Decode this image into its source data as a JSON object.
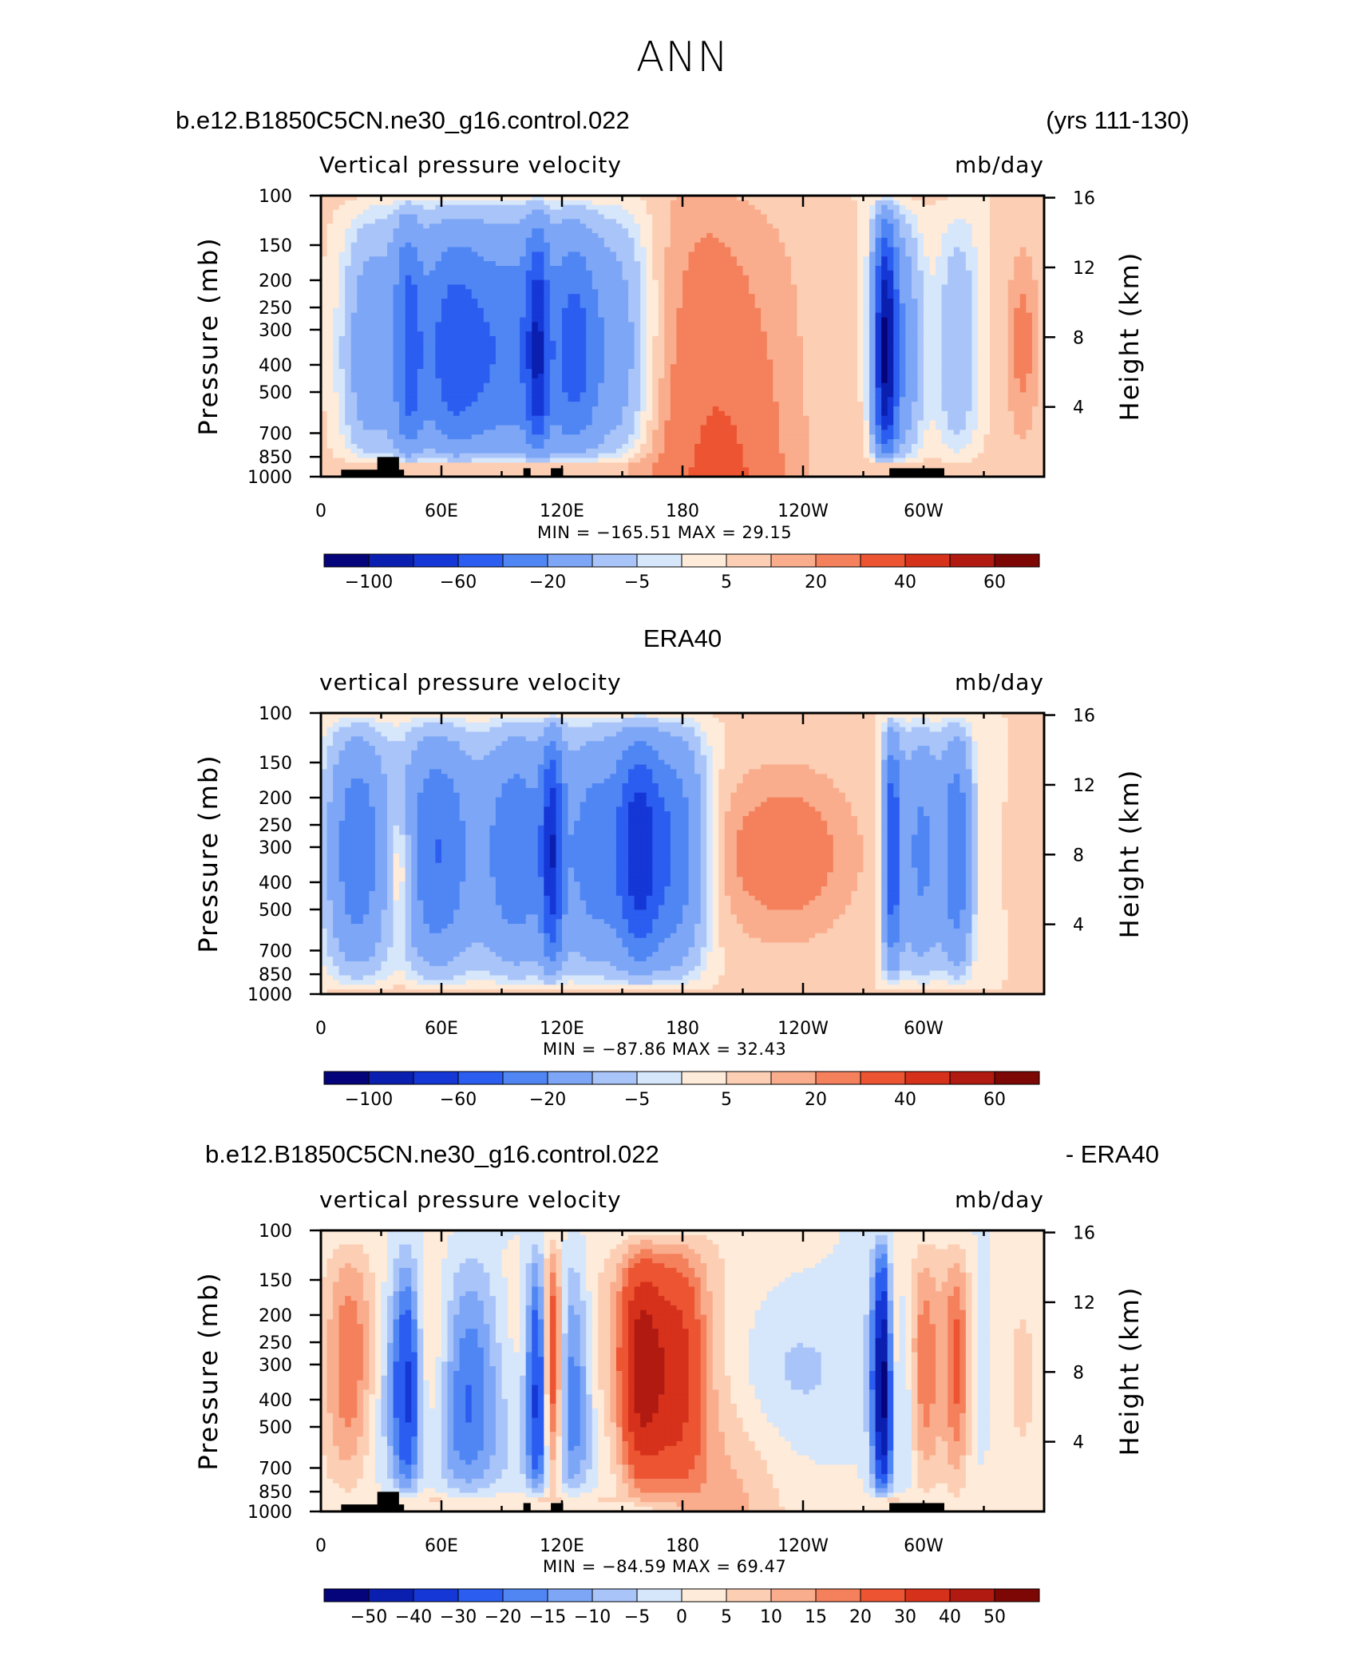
{
  "title": "ANN",
  "panels": [
    {
      "left_string": "b.e12.B1850C5CN.ne30_g16.control.022",
      "center_string": "",
      "right_string": "(yrs 111-130)",
      "variable": "Vertical pressure velocity",
      "units": "mb/day",
      "minmax": "MIN =  −165.51   MAX =   29.15",
      "has_topo": true
    },
    {
      "left_string": "",
      "center_string": "ERA40",
      "right_string": "",
      "variable": "vertical pressure velocity",
      "units": "mb/day",
      "minmax": "MIN =  −87.86   MAX =   32.43",
      "has_topo": false
    },
    {
      "left_string": "b.e12.B1850C5CN.ne30_g16.control.022",
      "center_string": "",
      "right_string": "- ERA40",
      "variable": "vertical pressure velocity",
      "units": "mb/day",
      "minmax": "MIN =  −84.59   MAX =   69.47",
      "has_topo": true
    }
  ],
  "colors": {
    "cmap": [
      "#06047a",
      "#0a1fb0",
      "#1437d6",
      "#2a5df0",
      "#4f86f4",
      "#7da6f6",
      "#a9c4f8",
      "#d6e6fb",
      "#feebd9",
      "#fcceb4",
      "#f9ad8d",
      "#f4805c",
      "#ec5432",
      "#d6311a",
      "#b01a10",
      "#7c0705"
    ],
    "topo": "#000000"
  },
  "chart_data": [
    {
      "type": "heatmap",
      "title": "b.e12.B1850C5CN.ne30_g16.control.022",
      "subtitle": "Vertical pressure velocity",
      "xlabel": "",
      "ylabel": "Pressure (mb)",
      "y2label": "Height (km)",
      "x_ticks": [
        "0",
        "60E",
        "120E",
        "180",
        "120W",
        "60W"
      ],
      "y_ticks": [
        "100",
        "150",
        "200",
        "250",
        "300",
        "400",
        "500",
        "700",
        "850",
        "1000"
      ],
      "y2_ticks": [
        "16",
        "12",
        "8",
        "4"
      ],
      "ylim": [
        1000,
        100
      ],
      "xlim": [
        0,
        360
      ],
      "colorbar_labels": [
        "−100",
        "−60",
        "−20",
        "−5",
        "5",
        "20",
        "40",
        "60"
      ],
      "min": -165.51,
      "max": 29.15,
      "units": "mb/day"
    },
    {
      "type": "heatmap",
      "title": "ERA40",
      "subtitle": "vertical pressure velocity",
      "xlabel": "",
      "ylabel": "Pressure (mb)",
      "y2label": "Height (km)",
      "x_ticks": [
        "0",
        "60E",
        "120E",
        "180",
        "120W",
        "60W"
      ],
      "y_ticks": [
        "100",
        "150",
        "200",
        "250",
        "300",
        "400",
        "500",
        "700",
        "850",
        "1000"
      ],
      "y2_ticks": [
        "16",
        "12",
        "8",
        "4"
      ],
      "ylim": [
        1000,
        100
      ],
      "xlim": [
        0,
        360
      ],
      "colorbar_labels": [
        "−100",
        "−60",
        "−20",
        "−5",
        "5",
        "20",
        "40",
        "60"
      ],
      "min": -87.86,
      "max": 32.43,
      "units": "mb/day"
    },
    {
      "type": "heatmap",
      "title": "b.e12.B1850C5CN.ne30_g16.control.022 - ERA40",
      "subtitle": "vertical pressure velocity",
      "xlabel": "",
      "ylabel": "Pressure (mb)",
      "y2label": "Height (km)",
      "x_ticks": [
        "0",
        "60E",
        "120E",
        "180",
        "120W",
        "60W"
      ],
      "y_ticks": [
        "100",
        "150",
        "200",
        "250",
        "300",
        "400",
        "500",
        "700",
        "850",
        "1000"
      ],
      "y2_ticks": [
        "16",
        "12",
        "8",
        "4"
      ],
      "ylim": [
        1000,
        100
      ],
      "xlim": [
        0,
        360
      ],
      "colorbar_labels": [
        "−50",
        "−40",
        "−30",
        "−20",
        "−15",
        "−10",
        "−5",
        "0",
        "5",
        "10",
        "15",
        "20",
        "30",
        "40",
        "50"
      ],
      "min": -84.59,
      "max": 69.47,
      "units": "mb/day"
    }
  ]
}
